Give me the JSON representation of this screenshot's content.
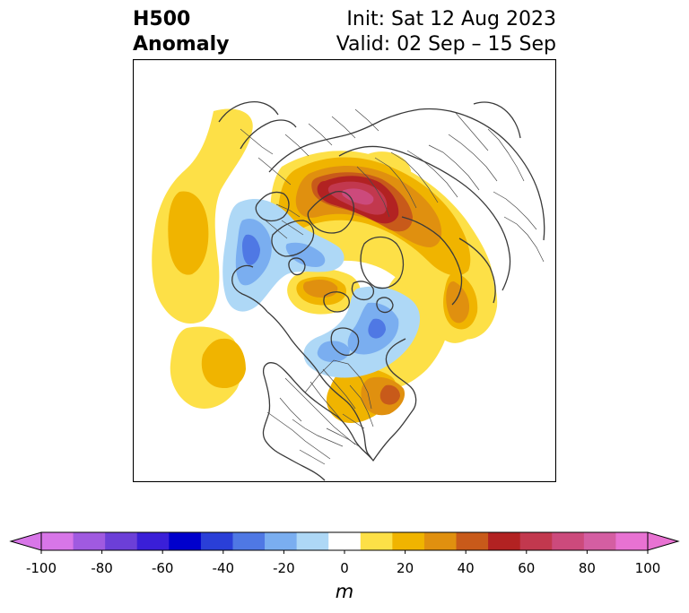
{
  "title": {
    "left_line1": "H500",
    "left_line2": "Anomaly",
    "right_line1": "Init: Sat 12 Aug 2023",
    "right_line2": "Valid: 02 Sep – 15 Sep"
  },
  "map": {
    "projection": "polar-stereographic-north",
    "field": "500 hPa geopotential height anomaly",
    "features": {
      "positive_anomaly_center": "Scandinavia / northwest Russia",
      "positive_anomaly_secondary": [
        "eastern United States",
        "central Arctic",
        "northeast Pacific",
        "Siberia"
      ],
      "negative_anomaly_centers": [
        "northern Canada / Greenland",
        "northeast Atlantic / Europe"
      ]
    }
  },
  "colorbar": {
    "unit": "m",
    "extend": "both",
    "tick_labels": [
      "-100",
      "-80",
      "-60",
      "-40",
      "-20",
      "0",
      "20",
      "40",
      "60",
      "80",
      "100"
    ],
    "tick_values": [
      -100,
      -80,
      -60,
      -40,
      -20,
      0,
      20,
      40,
      60,
      80,
      100
    ],
    "levels": [
      -100,
      -90,
      -80,
      -70,
      -60,
      -50,
      -40,
      -30,
      -20,
      -10,
      10,
      20,
      30,
      40,
      50,
      60,
      70,
      80,
      90,
      100
    ],
    "colors": [
      "#d876e8",
      "#a05ae0",
      "#6c3fd8",
      "#3a1fd8",
      "#0000cc",
      "#2a3fd8",
      "#4f78e4",
      "#7aaef0",
      "#aed8f6",
      "#ffffff",
      "#fde047",
      "#f0b400",
      "#e0900f",
      "#c85a1a",
      "#b22222",
      "#c2384e",
      "#cc4a7c",
      "#d45ea2",
      "#e872d2"
    ],
    "under_color": "#d876e8",
    "over_color": "#e872d2"
  }
}
